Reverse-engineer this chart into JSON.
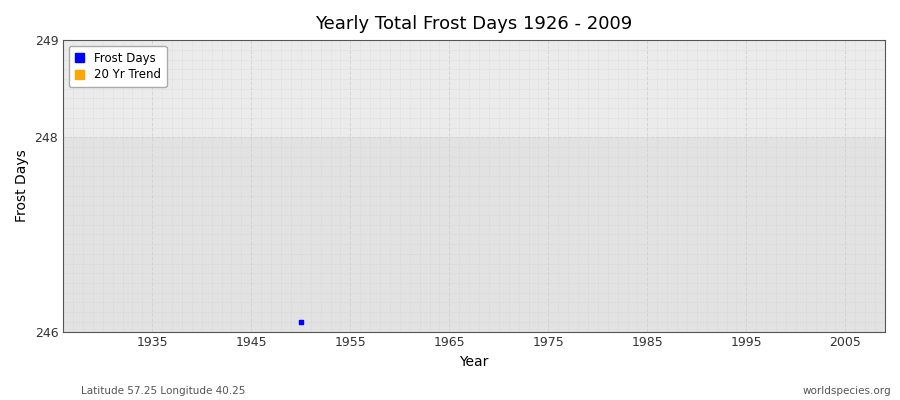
{
  "title": "Yearly Total Frost Days 1926 - 2009",
  "xlabel": "Year",
  "ylabel": "Frost Days",
  "xlim": [
    1926,
    2009
  ],
  "ylim": [
    246,
    249
  ],
  "yticks": [
    246,
    248,
    249
  ],
  "xticks": [
    1935,
    1945,
    1955,
    1965,
    1975,
    1985,
    1995,
    2005
  ],
  "data_point_x": 1950,
  "data_point_y": 246.1,
  "data_color": "#0000ff",
  "trend_color": "#ffa500",
  "bg_color_upper": "#ebebeb",
  "bg_color_lower": "#e0e0e0",
  "grid_color": "#cccccc",
  "fig_bg": "#ffffff",
  "subtitle_left": "Latitude 57.25 Longitude 40.25",
  "subtitle_right": "worldspecies.org",
  "legend_labels": [
    "Frost Days",
    "20 Yr Trend"
  ],
  "legend_colors": [
    "#0000ff",
    "#ffa500"
  ],
  "spine_color": "#555555"
}
